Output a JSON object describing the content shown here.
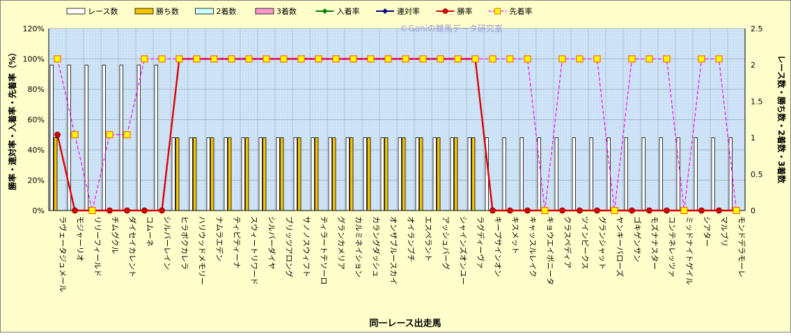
{
  "watermark": "©Ganiの競馬データ研究室",
  "chart_data": {
    "type": "bar",
    "xlabel": "同一レース出走馬",
    "ylabel_left": "勝率・連対率・入着率・先着率（%）",
    "ylabel_right": "レース数・勝ち数・2着数・3着数",
    "y_left_range": [
      0,
      120
    ],
    "y_left_ticks": [
      "0%",
      "20%",
      "40%",
      "60%",
      "80%",
      "100%",
      "120%"
    ],
    "y_right_range": [
      0,
      2.5
    ],
    "y_right_ticks": [
      "0",
      "0.5",
      "1",
      "1.5",
      "2",
      "2.5"
    ],
    "legend_position": "top",
    "grid": true,
    "categories": [
      "ラヴェータジュメール",
      "モジャーリオ",
      "リリーフィールド",
      "チムグクル",
      "ダイセイカレント",
      "コムーネ",
      "シルバーレイン",
      "ヒラボクカレラ",
      "ハリウッドメモリー",
      "ナムラエデン",
      "ティピティーナ",
      "スウィートリワード",
      "シルバーダイヤ",
      "ブリッツアロング",
      "サノノスウィフト",
      "ティラートテソーロ",
      "グランカメリア",
      "カルミネイション",
      "カラングダッシュ",
      "オンザブルースカイ",
      "オイランブチ",
      "エスペラント",
      "アッシュバーグ",
      "シャインズオンユー",
      "ラグディーヴァ",
      "キープサインオン",
      "キスメット",
      "キャッスルレイク",
      "キョウエイボニータ",
      "クラスペディア",
      "ツインピークス",
      "グランシャット",
      "ヤンキーバローズ",
      "ゴキゲンサン",
      "モズナナスター",
      "コンテネレッツァ",
      "ミッドナイトゲイル",
      "シアター",
      "マルブリ",
      "モンドデラモーレ"
    ],
    "series": [
      {
        "name": "レース数",
        "kind": "bar",
        "axis": "right",
        "color": "#ffffff",
        "values": [
          2,
          2,
          2,
          2,
          2,
          2,
          2,
          1,
          1,
          1,
          1,
          1,
          1,
          1,
          1,
          1,
          1,
          1,
          1,
          1,
          1,
          1,
          1,
          1,
          1,
          1,
          1,
          1,
          1,
          1,
          1,
          1,
          1,
          1,
          1,
          1,
          1,
          1,
          1,
          1
        ]
      },
      {
        "name": "勝ち数",
        "kind": "bar",
        "axis": "right",
        "color": "#f5c400",
        "values": [
          1,
          0,
          0,
          0,
          0,
          0,
          0,
          1,
          1,
          1,
          1,
          1,
          1,
          1,
          1,
          1,
          1,
          1,
          1,
          1,
          1,
          1,
          1,
          1,
          1,
          0,
          0,
          0,
          0,
          0,
          0,
          0,
          0,
          0,
          0,
          0,
          0,
          0,
          0,
          0
        ]
      },
      {
        "name": "2着数",
        "kind": "bar",
        "axis": "right",
        "color": "#ccffff",
        "values": [
          0,
          0,
          0,
          0,
          0,
          0,
          0,
          0,
          0,
          0,
          0,
          0,
          0,
          0,
          0,
          0,
          0,
          0,
          0,
          0,
          0,
          0,
          0,
          0,
          0,
          0,
          0,
          0,
          0,
          0,
          0,
          0,
          0,
          0,
          0,
          0,
          0,
          0,
          0,
          0
        ]
      },
      {
        "name": "3着数",
        "kind": "bar",
        "axis": "right",
        "color": "#ff99cc",
        "values": [
          0,
          0,
          0,
          0,
          0,
          0,
          0,
          0,
          0,
          0,
          0,
          0,
          0,
          0,
          0,
          0,
          0,
          0,
          0,
          0,
          0,
          0,
          0,
          0,
          0,
          0,
          0,
          0,
          0,
          0,
          0,
          0,
          0,
          0,
          0,
          0,
          0,
          0,
          0,
          0
        ]
      },
      {
        "name": "入着率",
        "kind": "line",
        "axis": "left",
        "color": "#008000",
        "hidden": true,
        "values": [
          50,
          0,
          0,
          0,
          0,
          0,
          0,
          100,
          100,
          100,
          100,
          100,
          100,
          100,
          100,
          100,
          100,
          100,
          100,
          100,
          100,
          100,
          100,
          100,
          100,
          0,
          0,
          0,
          0,
          0,
          0,
          0,
          0,
          0,
          0,
          0,
          0,
          0,
          0,
          0
        ]
      },
      {
        "name": "連対率",
        "kind": "line",
        "axis": "left",
        "color": "#000080",
        "hidden": true,
        "values": [
          50,
          0,
          0,
          0,
          0,
          0,
          0,
          100,
          100,
          100,
          100,
          100,
          100,
          100,
          100,
          100,
          100,
          100,
          100,
          100,
          100,
          100,
          100,
          100,
          100,
          0,
          0,
          0,
          0,
          0,
          0,
          0,
          0,
          0,
          0,
          0,
          0,
          0,
          0,
          0
        ]
      },
      {
        "name": "勝率",
        "kind": "line",
        "axis": "left",
        "color": "#dd0000",
        "values": [
          50,
          0,
          0,
          0,
          0,
          0,
          0,
          100,
          100,
          100,
          100,
          100,
          100,
          100,
          100,
          100,
          100,
          100,
          100,
          100,
          100,
          100,
          100,
          100,
          100,
          0,
          0,
          0,
          0,
          0,
          0,
          0,
          0,
          0,
          0,
          0,
          0,
          0,
          0,
          0
        ]
      },
      {
        "name": "先着率",
        "kind": "line",
        "axis": "left",
        "color": "#ff00ff",
        "values": [
          100,
          50,
          0,
          50,
          50,
          100,
          100,
          100,
          100,
          100,
          100,
          100,
          100,
          100,
          100,
          100,
          100,
          100,
          100,
          100,
          100,
          100,
          100,
          100,
          100,
          100,
          100,
          100,
          0,
          100,
          100,
          100,
          0,
          100,
          100,
          100,
          0,
          100,
          100,
          0
        ]
      }
    ]
  }
}
